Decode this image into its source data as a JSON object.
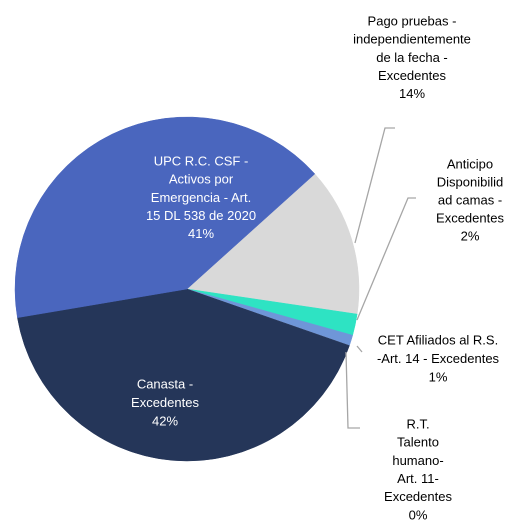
{
  "chart_data": {
    "type": "pie",
    "categories": [
      [
        "Pago pruebas -",
        "independientemente",
        "de la fecha -",
        "Excedentes"
      ],
      [
        "Anticipo",
        "Disponibilid",
        "ad camas -",
        "Excedentes"
      ],
      [
        "CET Afiliados al R.S.",
        "-Art. 14 - Excedentes"
      ],
      [
        "R.T.",
        "Talento",
        "humano-",
        "Art. 11-",
        "Excedentes"
      ],
      [
        "Canasta -",
        "Excedentes"
      ],
      [
        "UPC R.C. CSF -",
        "Activos por",
        "Emergencia - Art.",
        "15 DL 538 de 2020"
      ]
    ],
    "values": [
      14,
      2,
      1,
      0,
      42,
      41
    ],
    "value_labels": [
      "14%",
      "2%",
      "1%",
      "0%",
      "42%",
      "41%"
    ],
    "colors": [
      "#d9d9d9",
      "#2ee3c3",
      "#6f96d8",
      "#9fb3e0",
      "#253659",
      "#4a66be"
    ]
  }
}
